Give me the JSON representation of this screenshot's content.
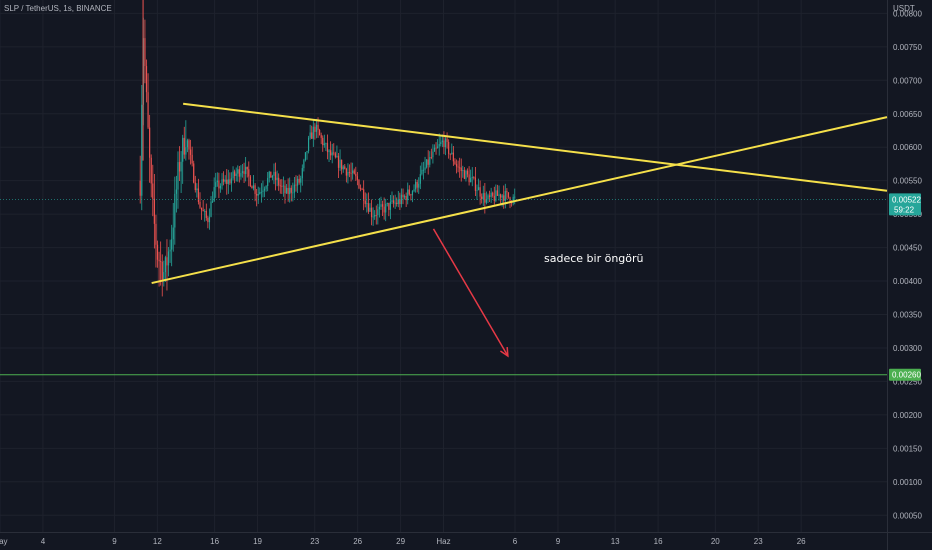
{
  "chart_data": {
    "type": "candlestick",
    "title": "SLP / TetherUS, 1s, BINANCE",
    "currency_label": "USDT",
    "y_ticks": [
      "0.00800",
      "0.00750",
      "0.00700",
      "0.00650",
      "0.00600",
      "0.00550",
      "0.00500",
      "0.00450",
      "0.00400",
      "0.00350",
      "0.00300",
      "0.00250",
      "0.00200",
      "0.00150",
      "0.00100",
      "0.00050"
    ],
    "y_tick_values": [
      0.008,
      0.0075,
      0.007,
      0.0065,
      0.006,
      0.0055,
      0.005,
      0.0045,
      0.004,
      0.0035,
      0.003,
      0.0025,
      0.002,
      0.0015,
      0.001,
      0.0005
    ],
    "ylim": [
      0.00025,
      0.0082
    ],
    "x_ticks": [
      "May",
      "4",
      "9",
      "12",
      "16",
      "19",
      "23",
      "26",
      "29",
      "Haz",
      "6",
      "9",
      "13",
      "16",
      "20",
      "23",
      "26"
    ],
    "x_tick_days": [
      1,
      4,
      9,
      12,
      16,
      19,
      23,
      26,
      29,
      32,
      37,
      40,
      44,
      47,
      51,
      54,
      57
    ],
    "xlim": [
      1,
      63
    ],
    "grid": true,
    "price_path": [
      {
        "day": 10.8,
        "price": 0.0055
      },
      {
        "day": 11.0,
        "price": 0.0078
      },
      {
        "day": 11.3,
        "price": 0.0064
      },
      {
        "day": 11.6,
        "price": 0.0052
      },
      {
        "day": 12.0,
        "price": 0.0044
      },
      {
        "day": 12.5,
        "price": 0.0041
      },
      {
        "day": 13.0,
        "price": 0.0047
      },
      {
        "day": 13.5,
        "price": 0.0057
      },
      {
        "day": 14.0,
        "price": 0.0062
      },
      {
        "day": 14.5,
        "price": 0.0056
      },
      {
        "day": 15.0,
        "price": 0.0051
      },
      {
        "day": 15.5,
        "price": 0.0049
      },
      {
        "day": 16.0,
        "price": 0.0054
      },
      {
        "day": 17.0,
        "price": 0.0055
      },
      {
        "day": 18.0,
        "price": 0.0057
      },
      {
        "day": 19.0,
        "price": 0.0053
      },
      {
        "day": 20.0,
        "price": 0.0056
      },
      {
        "day": 21.0,
        "price": 0.0053
      },
      {
        "day": 22.0,
        "price": 0.0055
      },
      {
        "day": 22.6,
        "price": 0.0061
      },
      {
        "day": 23.0,
        "price": 0.0063
      },
      {
        "day": 24.0,
        "price": 0.0059
      },
      {
        "day": 25.0,
        "price": 0.0057
      },
      {
        "day": 26.0,
        "price": 0.0055
      },
      {
        "day": 27.0,
        "price": 0.005
      },
      {
        "day": 28.0,
        "price": 0.0051
      },
      {
        "day": 29.0,
        "price": 0.0052
      },
      {
        "day": 30.0,
        "price": 0.0054
      },
      {
        "day": 31.0,
        "price": 0.0058
      },
      {
        "day": 32.0,
        "price": 0.0061
      },
      {
        "day": 33.0,
        "price": 0.0057
      },
      {
        "day": 34.0,
        "price": 0.0055
      },
      {
        "day": 35.0,
        "price": 0.0052
      },
      {
        "day": 36.0,
        "price": 0.0053
      },
      {
        "day": 37.0,
        "price": 0.00522
      }
    ],
    "drawings": {
      "upper_trendline": {
        "start": {
          "day": 13.8,
          "price": 0.00665
        },
        "end": {
          "day": 63,
          "price": 0.00535
        },
        "color": "#f5e04a"
      },
      "lower_trendline": {
        "start": {
          "day": 11.6,
          "price": 0.00397
        },
        "end": {
          "day": 63,
          "price": 0.00645
        },
        "color": "#f5e04a"
      },
      "arrow": {
        "start": {
          "day": 31.3,
          "price": 0.00478
        },
        "end": {
          "day": 36.5,
          "price": 0.00288
        },
        "color": "#e63946"
      },
      "horizontal_line": {
        "price": 0.0026,
        "color": "#4caf50"
      }
    },
    "current_price": {
      "value": "0.00522",
      "countdown": "59:22",
      "color": "#26a69a"
    },
    "target_price": {
      "value": "0.00260",
      "color": "#4caf50"
    },
    "annotation": "sadece bir öngörü"
  }
}
